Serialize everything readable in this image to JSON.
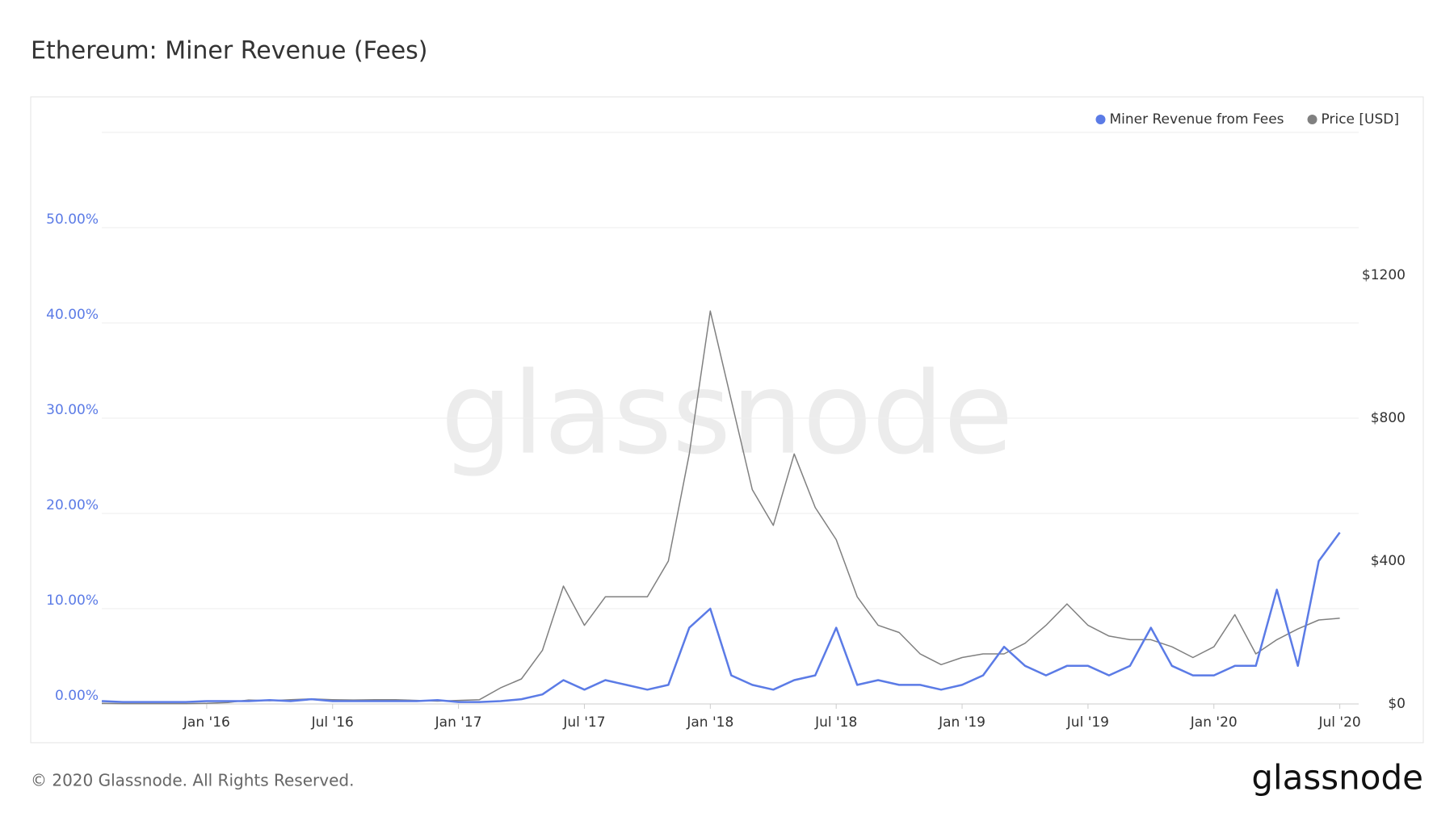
{
  "chart_data": {
    "type": "line",
    "title": "Ethereum: Miner Revenue (Fees)",
    "x": [
      "2015-08",
      "2015-09",
      "2015-10",
      "2015-11",
      "2015-12",
      "2016-01",
      "2016-02",
      "2016-03",
      "2016-04",
      "2016-05",
      "2016-06",
      "2016-07",
      "2016-08",
      "2016-09",
      "2016-10",
      "2016-11",
      "2016-12",
      "2017-01",
      "2017-02",
      "2017-03",
      "2017-04",
      "2017-05",
      "2017-06",
      "2017-07",
      "2017-08",
      "2017-09",
      "2017-10",
      "2017-11",
      "2017-12",
      "2018-01",
      "2018-02",
      "2018-03",
      "2018-04",
      "2018-05",
      "2018-06",
      "2018-07",
      "2018-08",
      "2018-09",
      "2018-10",
      "2018-11",
      "2018-12",
      "2019-01",
      "2019-02",
      "2019-03",
      "2019-04",
      "2019-05",
      "2019-06",
      "2019-07",
      "2019-08",
      "2019-09",
      "2019-10",
      "2019-11",
      "2019-12",
      "2020-01",
      "2020-02",
      "2020-03",
      "2020-04",
      "2020-05",
      "2020-06",
      "2020-07"
    ],
    "series": [
      {
        "name": "Miner Revenue from Fees",
        "color": "#5b7be6",
        "axis": "y",
        "values": [
          0.3,
          0.2,
          0.2,
          0.2,
          0.2,
          0.3,
          0.3,
          0.3,
          0.4,
          0.3,
          0.5,
          0.3,
          0.3,
          0.3,
          0.3,
          0.3,
          0.4,
          0.2,
          0.2,
          0.3,
          0.5,
          1.0,
          2.5,
          1.5,
          2.5,
          2.0,
          1.5,
          2.0,
          8.0,
          10.0,
          3.0,
          2.0,
          1.5,
          2.5,
          3.0,
          8.0,
          2.0,
          2.5,
          2.0,
          2.0,
          1.5,
          2.0,
          3.0,
          6.0,
          4.0,
          3.0,
          4.0,
          4.0,
          3.0,
          4.0,
          8.0,
          4.0,
          3.0,
          3.0,
          4.0,
          4.0,
          12.0,
          4.0,
          15.0,
          18.0
        ]
      },
      {
        "name": "Price [USD]",
        "color": "#808080",
        "axis": "y2",
        "values": [
          1.5,
          1,
          0.8,
          0.9,
          0.9,
          1.5,
          4,
          11,
          9,
          12,
          14,
          12,
          11,
          12,
          12,
          10,
          8,
          10,
          12,
          45,
          70,
          150,
          330,
          220,
          300,
          300,
          300,
          400,
          700,
          1100,
          850,
          600,
          500,
          700,
          550,
          460,
          300,
          220,
          200,
          140,
          110,
          130,
          140,
          140,
          170,
          220,
          280,
          220,
          190,
          180,
          180,
          160,
          130,
          160,
          250,
          140,
          180,
          210,
          235,
          240
        ]
      }
    ],
    "xlim": [
      "2015-08",
      "2020-07"
    ],
    "xticks": [
      {
        "value": "2016-01",
        "label": "Jan '16"
      },
      {
        "value": "2016-07",
        "label": "Jul '16"
      },
      {
        "value": "2017-01",
        "label": "Jan '17"
      },
      {
        "value": "2017-07",
        "label": "Jul '17"
      },
      {
        "value": "2018-01",
        "label": "Jan '18"
      },
      {
        "value": "2018-07",
        "label": "Jul '18"
      },
      {
        "value": "2019-01",
        "label": "Jan '19"
      },
      {
        "value": "2019-07",
        "label": "Jul '19"
      },
      {
        "value": "2020-01",
        "label": "Jan '20"
      },
      {
        "value": "2020-07",
        "label": "Jul '20"
      }
    ],
    "ylim": [
      0,
      60
    ],
    "yticks": [
      {
        "value": 0,
        "label": "0.00%"
      },
      {
        "value": 10,
        "label": "10.00%"
      },
      {
        "value": 20,
        "label": "20.00%"
      },
      {
        "value": 30,
        "label": "30.00%"
      },
      {
        "value": 40,
        "label": "40.00%"
      },
      {
        "value": 50,
        "label": "50.00%"
      }
    ],
    "y2lim": [
      0,
      1600
    ],
    "y2ticks": [
      {
        "value": 0,
        "label": "$0"
      },
      {
        "value": 400,
        "label": "$400"
      },
      {
        "value": 800,
        "label": "$800"
      },
      {
        "value": 1200,
        "label": "$1200"
      }
    ],
    "grid": true,
    "legend": "top-right"
  },
  "watermark": "glassnode",
  "copyright": "© 2020 Glassnode. All Rights Reserved.",
  "logo": "glassnode"
}
